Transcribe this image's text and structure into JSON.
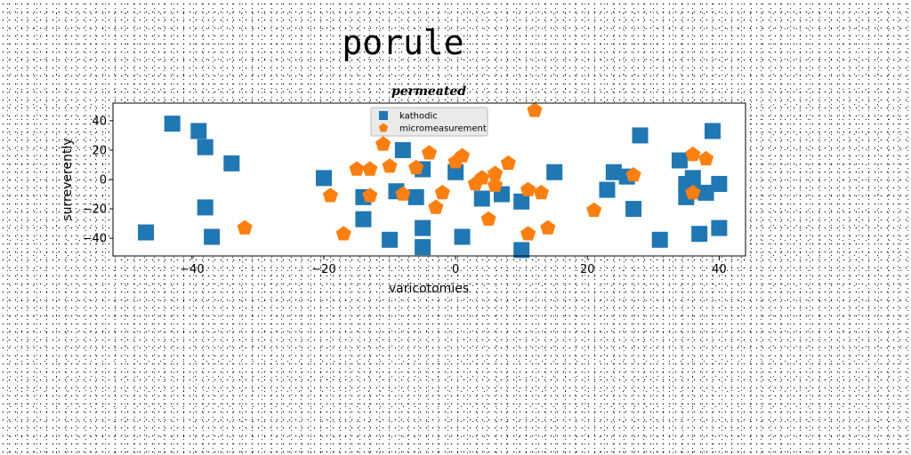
{
  "figure": {
    "title": "porule"
  },
  "chart_data": {
    "type": "scatter",
    "title": "permeated",
    "xlabel": "varicotomies",
    "ylabel": "surreverently",
    "xlim": [
      -52,
      44
    ],
    "ylim": [
      -52,
      52
    ],
    "xticks": [
      -40,
      -20,
      0,
      20,
      40
    ],
    "yticks": [
      -40,
      -20,
      0,
      20,
      40
    ],
    "xtick_labels": [
      "−40",
      "−20",
      "0",
      "20",
      "40"
    ],
    "ytick_labels": [
      "−40",
      "−20",
      "0",
      "20",
      "40"
    ],
    "grid": false,
    "legend_position": "top-center",
    "series": [
      {
        "name": "kathodic",
        "marker": "square",
        "color": "#1f77b4",
        "x": [
          -43,
          -39,
          -38,
          -38,
          -37,
          -34,
          -47,
          -20,
          -14,
          -14,
          -10,
          -9,
          -8,
          -6,
          -5,
          -5,
          -5,
          0,
          1,
          4,
          7,
          10,
          10,
          15,
          23,
          24,
          26,
          27,
          28,
          31,
          34,
          35,
          35,
          36,
          36,
          37,
          38,
          39,
          40,
          40
        ],
        "y": [
          38,
          33,
          22,
          -19,
          -39,
          11,
          -36,
          1,
          -12,
          -27,
          -41,
          -8,
          20,
          -12,
          -33,
          -46,
          7,
          5,
          -39,
          -13,
          -10,
          -15,
          -48,
          5,
          -7,
          5,
          2,
          -20,
          30,
          -41,
          13,
          -12,
          -3,
          1,
          -8,
          -37,
          -9,
          33,
          -3,
          -33
        ]
      },
      {
        "name": "micromeasurement",
        "marker": "pentagon",
        "color": "#ff7f0e",
        "x": [
          -32,
          -19,
          -17,
          -15,
          -13,
          -13,
          -11,
          -10,
          -8,
          -6,
          -4,
          -3,
          -2,
          0,
          1,
          3,
          4,
          5,
          6,
          6,
          8,
          11,
          11,
          12,
          13,
          14,
          21,
          27,
          36,
          36,
          38
        ],
        "y": [
          -33,
          -11,
          -37,
          7,
          7,
          -11,
          24,
          9,
          -10,
          8,
          18,
          -19,
          -9,
          12,
          16,
          -3,
          1,
          -27,
          -4,
          4,
          11,
          -7,
          -37,
          47,
          -9,
          -33,
          -21,
          3,
          17,
          -9,
          14
        ]
      }
    ]
  }
}
